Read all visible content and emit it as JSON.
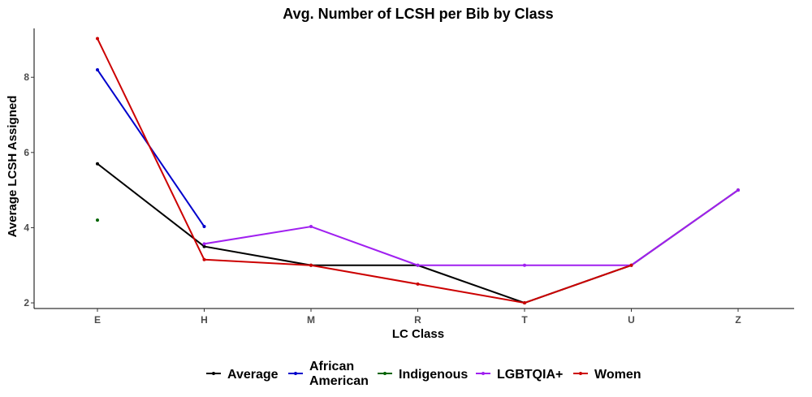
{
  "chart_data": {
    "type": "line",
    "title": "Avg. Number of LCSH per Bib by Class",
    "xlabel": "LC Class",
    "ylabel": "Average LCSH Assigned",
    "categories": [
      "E",
      "H",
      "M",
      "R",
      "T",
      "U",
      "Z"
    ],
    "y_ticks": [
      2,
      4,
      6,
      8
    ],
    "ylim": [
      1.85,
      9.3
    ],
    "grid": false,
    "legend_position": "bottom",
    "series": [
      {
        "name": "Average",
        "color": "#000000",
        "values": [
          5.7,
          3.5,
          3.0,
          3.0,
          2.0,
          3.0,
          5.0
        ]
      },
      {
        "name": "African American",
        "label_lines": [
          "African",
          "American"
        ],
        "color": "#0000cc",
        "values": [
          8.2,
          4.03,
          null,
          null,
          null,
          null,
          null
        ]
      },
      {
        "name": "Indigenous",
        "color": "#006400",
        "values": [
          4.2,
          null,
          null,
          null,
          null,
          null,
          null
        ]
      },
      {
        "name": "LGBTQIA+",
        "color": "#a020f0",
        "values": [
          null,
          3.57,
          4.03,
          3.0,
          3.0,
          3.0,
          5.0
        ]
      },
      {
        "name": "Women",
        "color": "#cc0000",
        "values": [
          9.03,
          3.15,
          3.0,
          2.5,
          2.0,
          3.0,
          null
        ]
      }
    ]
  }
}
